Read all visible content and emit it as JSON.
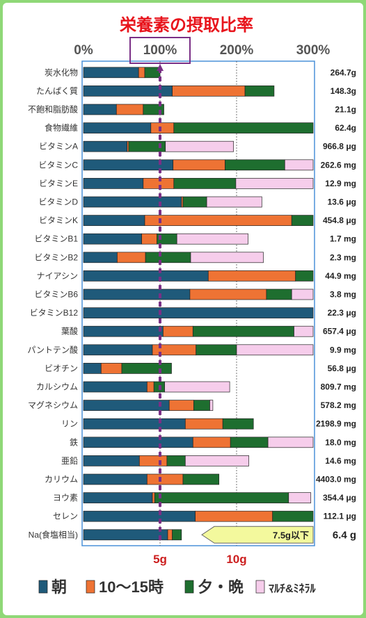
{
  "chart_data": {
    "type": "bar",
    "title": "栄養素の摂取比率",
    "x_ticks": [
      "0%",
      "100%",
      "200%",
      "300%"
    ],
    "xlim": [
      0,
      300
    ],
    "grid": true,
    "legend_position": "bottom",
    "colors": {
      "morning": "#1f5a7a",
      "midday": "#ee7334",
      "evening": "#1e6e2f",
      "supplement": "#f6cdeb",
      "title": "#e8141c",
      "highlight": "#7a2f86",
      "salt": "#cc1f1f",
      "background": "#8fd877",
      "plot_border": "#4a90d9"
    },
    "series": [
      {
        "name": "朝",
        "key": "morning"
      },
      {
        "name": "10～15時",
        "key": "midday"
      },
      {
        "name": "夕・晩",
        "key": "evening"
      },
      {
        "name": "ﾏﾙﾁ&ﾐﾈﾗﾙ",
        "key": "supplement"
      }
    ],
    "categories": [
      "炭水化物",
      "たんぱく質",
      "不飽和脂肪酸",
      "食物繊維",
      "ビタミンA",
      "ビタミンC",
      "ビタミンE",
      "ビタミンD",
      "ビタミンK",
      "ビタミンB1",
      "ビタミンB2",
      "ナイアシン",
      "ビタミンB6",
      "ビタミンB12",
      "葉酸",
      "パントテン酸",
      "ビオチン",
      "カルシウム",
      "マグネシウム",
      "リン",
      "鉄",
      "亜鉛",
      "カリウム",
      "ヨウ素",
      "セレン"
    ],
    "amounts": [
      "264.7g",
      "148.3g",
      "21.1g",
      "62.4g",
      "966.8 μg",
      "262.6 mg",
      "12.9 mg",
      "13.6 μg",
      "454.8 μg",
      "1.7 mg",
      "2.3 mg",
      "44.9 mg",
      "3.8 mg",
      "22.3 μg",
      "657.4 μg",
      "9.9 mg",
      "56.8 μg",
      "809.7 mg",
      "578.2 mg",
      "2198.9 mg",
      "18.0 mg",
      "14.6 mg",
      "4403.0 mg",
      "354.4 μg",
      "112.1 μg"
    ],
    "values": [
      [
        72,
        8,
        20,
        0
      ],
      [
        116,
        95,
        38,
        0
      ],
      [
        43,
        35,
        27,
        0
      ],
      [
        88,
        30,
        182,
        0
      ],
      [
        57,
        2,
        48,
        89
      ],
      [
        117,
        68,
        78,
        37
      ],
      [
        78,
        40,
        81,
        103
      ],
      [
        128,
        2,
        31,
        72
      ],
      [
        80,
        192,
        30,
        0
      ],
      [
        76,
        20,
        26,
        93
      ],
      [
        44,
        37,
        59,
        95
      ],
      [
        163,
        114,
        23,
        0
      ],
      [
        139,
        100,
        33,
        29
      ],
      [
        302,
        0,
        0,
        0
      ],
      [
        104,
        39,
        132,
        27
      ],
      [
        90,
        57,
        53,
        101
      ],
      [
        23,
        27,
        65,
        0
      ],
      [
        83,
        9,
        14,
        85
      ],
      [
        112,
        32,
        21,
        4
      ],
      [
        133,
        49,
        40,
        0
      ],
      [
        143,
        49,
        49,
        61
      ],
      [
        73,
        36,
        24,
        83
      ],
      [
        83,
        47,
        47,
        0
      ],
      [
        90,
        3,
        175,
        29
      ],
      [
        146,
        101,
        56,
        0
      ]
    ],
    "salt": {
      "label": "Na(食塩相当)",
      "amount": "6.4 g",
      "x_unit": "g",
      "xlim_g": [
        0,
        15
      ],
      "values_g": [
        5.5,
        0.3,
        0.6,
        0
      ],
      "target": "7.5g以下",
      "ticks": [
        "5g",
        "10g"
      ]
    },
    "reference_line_pct": 100
  }
}
